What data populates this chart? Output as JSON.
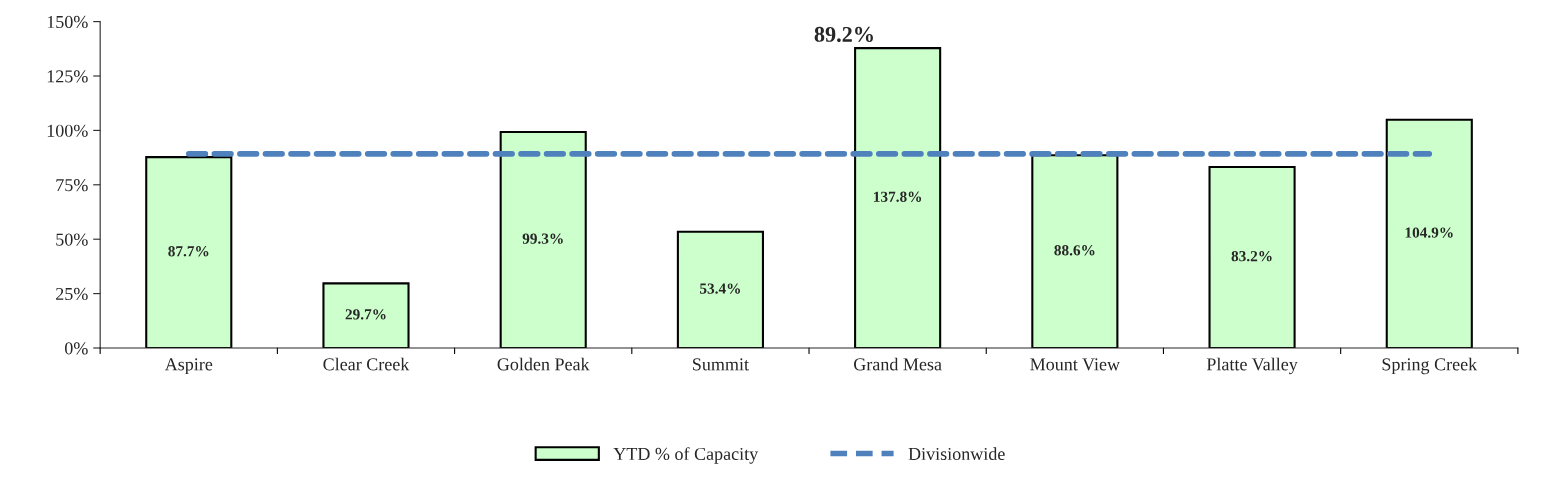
{
  "chart_data": {
    "type": "bar",
    "categories": [
      "Aspire",
      "Clear Creek",
      "Golden Peak",
      "Summit",
      "Grand Mesa",
      "Mount View",
      "Platte Valley",
      "Spring Creek"
    ],
    "series": [
      {
        "name": "YTD % of Capacity",
        "color": "#ccffcc",
        "values": [
          87.7,
          29.7,
          99.3,
          53.4,
          137.8,
          88.6,
          83.2,
          104.9
        ],
        "value_labels": [
          "87.7%",
          "29.7%",
          "99.3%",
          "53.4%",
          "137.8%",
          "88.6%",
          "83.2%",
          "104.9%"
        ]
      },
      {
        "name": "Divisionwide",
        "type": "line",
        "color": "#4f81bd",
        "line_style": "dashed",
        "values": [
          89.2,
          89.2,
          89.2,
          89.2,
          89.2,
          89.2,
          89.2,
          89.2
        ]
      }
    ],
    "annotations": [
      "89.2%"
    ],
    "ylim": [
      0,
      150
    ],
    "yticks": [
      {
        "value": 0,
        "label": "0%"
      },
      {
        "value": 25,
        "label": "25%"
      },
      {
        "value": 50,
        "label": "50%"
      },
      {
        "value": 75,
        "label": "75%"
      },
      {
        "value": 100,
        "label": "100%"
      },
      {
        "value": 125,
        "label": "125%"
      },
      {
        "value": 150,
        "label": "150%"
      }
    ],
    "grid": false,
    "legend": "bottom"
  }
}
